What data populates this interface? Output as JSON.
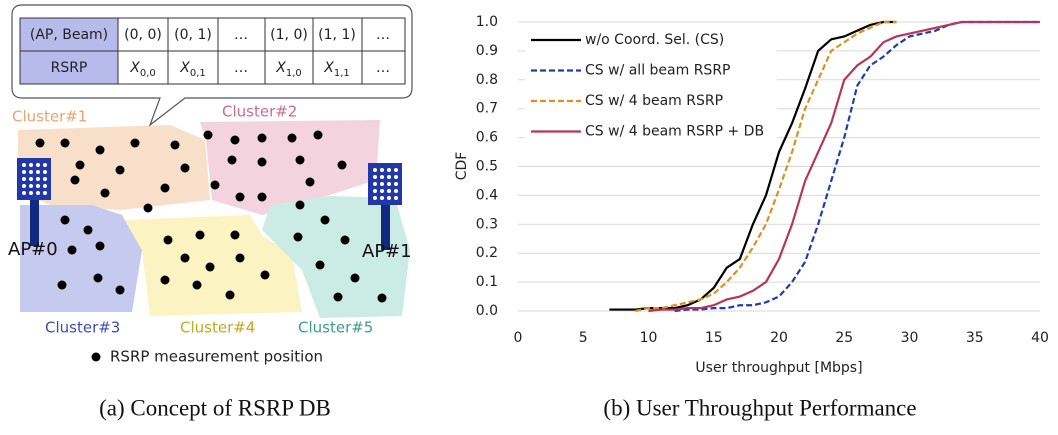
{
  "diagram": {
    "table": {
      "header": [
        "(AP, Beam)",
        "(0, 0)",
        "(0, 1)",
        "…",
        "(1, 0)",
        "(1, 1)",
        "…"
      ],
      "row": [
        "RSRP",
        {
          "base": "X",
          "sub": "0,0"
        },
        {
          "base": "X",
          "sub": "0,1"
        },
        "…",
        {
          "base": "X",
          "sub": "1,0"
        },
        {
          "base": "X",
          "sub": "1,1"
        },
        "…"
      ]
    },
    "clusters": [
      "Cluster#1",
      "Cluster#2",
      "Cluster#3",
      "Cluster#4",
      "Cluster#5"
    ],
    "aps": [
      "AP#0",
      "AP#1"
    ],
    "legend": "RSRP measurement position"
  },
  "captions": [
    "(a)  Concept of RSRP DB",
    "(b) User Throughput Performance"
  ],
  "chart_data": {
    "type": "line",
    "x_label": "User throughput [Mbps]",
    "y_label": "CDF",
    "x": [
      7,
      8,
      9,
      10,
      11,
      12,
      13,
      14,
      15,
      16,
      17,
      18,
      19,
      20,
      21,
      22,
      23,
      24,
      25,
      26,
      27,
      28,
      29,
      30,
      31,
      32,
      33,
      34,
      35,
      36,
      40
    ],
    "series": [
      {
        "name": "w/o Coord. Sel. (CS)",
        "color": "#000000",
        "dash": false,
        "values": [
          0.005,
          0.005,
          0.005,
          0.01,
          0.01,
          0.01,
          0.02,
          0.04,
          0.08,
          0.15,
          0.18,
          0.3,
          0.4,
          0.55,
          0.65,
          0.77,
          0.9,
          0.94,
          0.95,
          0.97,
          0.99,
          1.0,
          1.0,
          null,
          null,
          null,
          null,
          null,
          null,
          null,
          null
        ]
      },
      {
        "name": "CS w/ all beam RSRP",
        "color": "#1f3ea8",
        "dash": true,
        "values": [
          null,
          null,
          null,
          null,
          null,
          0.0,
          0.005,
          0.005,
          0.01,
          0.01,
          0.02,
          0.02,
          0.03,
          0.05,
          0.1,
          0.17,
          0.3,
          0.45,
          0.6,
          0.78,
          0.85,
          0.88,
          0.92,
          0.95,
          0.96,
          0.97,
          0.99,
          1.0,
          1.0,
          1.0,
          1.0
        ]
      },
      {
        "name": "CS w/ 4 beam RSRP",
        "color": "#d9931e",
        "dash": true,
        "values": [
          null,
          null,
          0.0,
          0.01,
          0.01,
          0.02,
          0.03,
          0.04,
          0.06,
          0.1,
          0.15,
          0.22,
          0.3,
          0.42,
          0.55,
          0.7,
          0.8,
          0.9,
          0.93,
          0.96,
          0.98,
          1.0,
          1.0,
          null,
          null,
          null,
          null,
          null,
          null,
          null,
          null
        ]
      },
      {
        "name": "CS w/ 4 beam RSRP + DB",
        "color": "#b7355a",
        "dash": false,
        "values": [
          null,
          null,
          null,
          0.0,
          0.005,
          0.005,
          0.01,
          0.01,
          0.02,
          0.04,
          0.05,
          0.07,
          0.1,
          0.18,
          0.3,
          0.45,
          0.55,
          0.65,
          0.8,
          0.85,
          0.88,
          0.93,
          0.95,
          0.96,
          0.97,
          0.98,
          0.99,
          1.0,
          1.0,
          1.0,
          1.0
        ]
      }
    ],
    "xlim": [
      0,
      40
    ],
    "xticks": [
      0,
      5,
      10,
      15,
      20,
      25,
      30,
      35,
      40
    ],
    "ylim": [
      0,
      1
    ],
    "yticks": [
      {
        "value": 0,
        "label": "0.0"
      },
      0.1,
      0.2,
      0.3,
      0.4,
      0.5,
      0.6,
      0.7,
      0.8,
      0.9,
      {
        "value": 1,
        "label": "1.0"
      }
    ],
    "grid": true,
    "legend": "upper-left"
  }
}
